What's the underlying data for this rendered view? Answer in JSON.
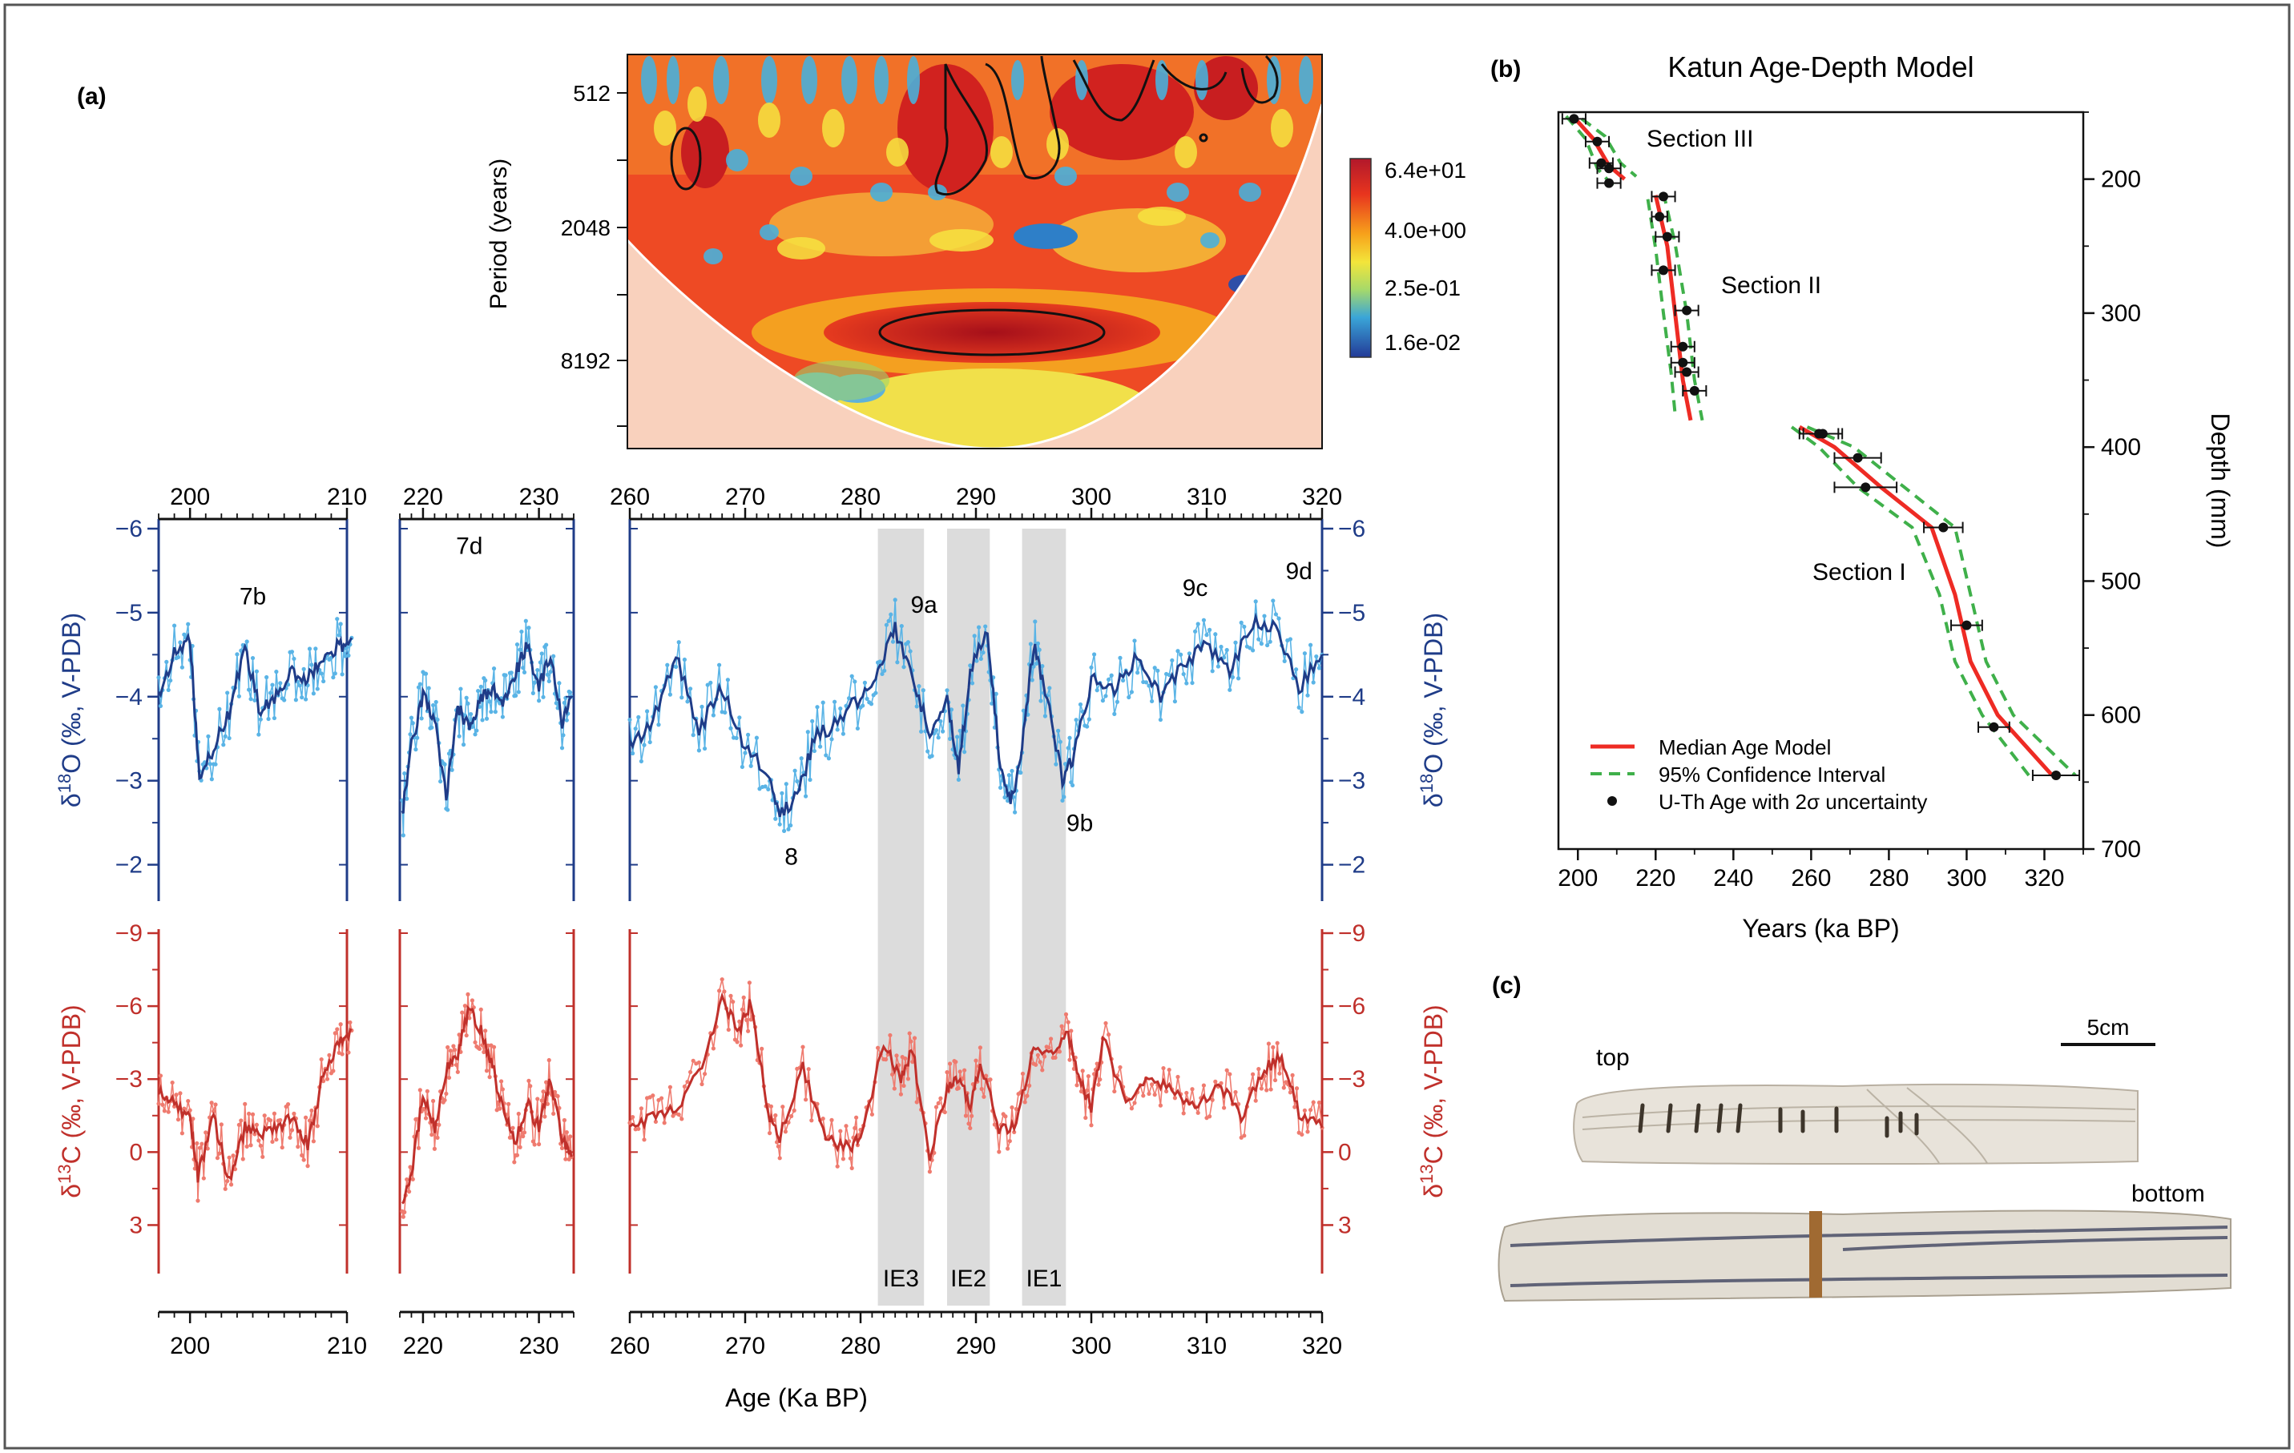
{
  "panel_labels": {
    "a": "(a)",
    "b": "(b)",
    "c": "(c)"
  },
  "colors": {
    "d18o_dark": "#1f3c88",
    "d18o_light": "#5ab4e6",
    "d13c_dark": "#c0302b",
    "d13c_light": "#ef7b6f",
    "median": "#ee2b24",
    "ci": "#3fb04a",
    "ie_band": "#dcdcdc"
  },
  "wavelet": {
    "ylabel": "Period (years)",
    "yticks": [
      "512",
      "2048",
      "8192"
    ],
    "colorbar_labels": [
      "6.4e+01",
      "4.0e+00",
      "2.5e-01",
      "1.6e-02"
    ]
  },
  "chart_data": [
    {
      "type": "line",
      "name": "d18O",
      "ylabel_left": "δ18O (‰, V-PDB)",
      "ylabel_right": "δ18O (‰, V-PDB)",
      "ylim": [
        -6,
        -1.5
      ],
      "yticks": [
        "-6",
        "-5",
        "-4",
        "-3",
        "-2"
      ],
      "segments": [
        {
          "xlim": [
            198,
            210
          ],
          "xticks": [
            "200",
            "210"
          ],
          "points": [
            [
              198,
              -4.0
            ],
            [
              199,
              -4.5
            ],
            [
              200,
              -4.7
            ],
            [
              200.6,
              -3.0
            ],
            [
              201.5,
              -3.4
            ],
            [
              202.5,
              -3.8
            ],
            [
              203.5,
              -4.6
            ],
            [
              204.5,
              -3.8
            ],
            [
              205.5,
              -4.0
            ],
            [
              206.5,
              -4.3
            ],
            [
              207.5,
              -4.2
            ],
            [
              208.5,
              -4.5
            ],
            [
              209.5,
              -4.6
            ],
            [
              210.3,
              -4.7
            ]
          ]
        },
        {
          "xlim": [
            218,
            233
          ],
          "xticks": [
            "220",
            "230"
          ],
          "points": [
            [
              218.2,
              -2.6
            ],
            [
              219,
              -3.4
            ],
            [
              220,
              -4.0
            ],
            [
              221,
              -3.7
            ],
            [
              222,
              -2.8
            ],
            [
              223,
              -3.9
            ],
            [
              224,
              -3.6
            ],
            [
              225,
              -4.0
            ],
            [
              226,
              -4.1
            ],
            [
              227,
              -3.9
            ],
            [
              228,
              -4.3
            ],
            [
              229,
              -4.6
            ],
            [
              230,
              -4.1
            ],
            [
              231,
              -4.5
            ],
            [
              232,
              -3.7
            ],
            [
              232.8,
              -4.0
            ]
          ]
        },
        {
          "xlim": [
            260,
            320
          ],
          "xticks": [
            "260",
            "270",
            "280",
            "290",
            "300",
            "310",
            "320"
          ],
          "points": [
            [
              260,
              -3.4
            ],
            [
              262,
              -3.7
            ],
            [
              264,
              -4.5
            ],
            [
              266,
              -3.6
            ],
            [
              268,
              -4.1
            ],
            [
              270,
              -3.4
            ],
            [
              272,
              -3.1
            ],
            [
              273,
              -2.6
            ],
            [
              274.5,
              -2.8
            ],
            [
              276,
              -3.5
            ],
            [
              278,
              -3.7
            ],
            [
              280,
              -4.0
            ],
            [
              281.5,
              -4.3
            ],
            [
              283,
              -4.8
            ],
            [
              284.5,
              -4.2
            ],
            [
              286,
              -3.6
            ],
            [
              287.5,
              -4.0
            ],
            [
              288.5,
              -3.1
            ],
            [
              289.5,
              -4.3
            ],
            [
              291,
              -4.8
            ],
            [
              292,
              -3.3
            ],
            [
              293,
              -2.7
            ],
            [
              294,
              -3.4
            ],
            [
              295,
              -4.6
            ],
            [
              296,
              -4.1
            ],
            [
              297.5,
              -3.0
            ],
            [
              298.5,
              -3.3
            ],
            [
              300,
              -4.2
            ],
            [
              302,
              -4.1
            ],
            [
              304,
              -4.5
            ],
            [
              306,
              -4.0
            ],
            [
              308,
              -4.4
            ],
            [
              310,
              -4.6
            ],
            [
              312,
              -4.3
            ],
            [
              314,
              -4.9
            ],
            [
              316,
              -4.8
            ],
            [
              318,
              -4.1
            ],
            [
              320,
              -4.5
            ]
          ]
        }
      ],
      "annotations": [
        {
          "text": "7b",
          "x": 204,
          "y": -5.1
        },
        {
          "text": "7d",
          "x": 224,
          "y": -5.7
        },
        {
          "text": "9a",
          "x": 285.5,
          "y": -5.0
        },
        {
          "text": "9c",
          "x": 309,
          "y": -5.2
        },
        {
          "text": "9d",
          "x": 318,
          "y": -5.4
        },
        {
          "text": "8",
          "x": 274,
          "y": -2.0
        },
        {
          "text": "9b",
          "x": 299,
          "y": -2.4
        }
      ]
    },
    {
      "type": "line",
      "name": "d13C",
      "ylabel_left": "δ13C (‰, V-PDB)",
      "ylabel_right": "δ13C (‰, V-PDB)",
      "ylim": [
        -9,
        4.5
      ],
      "yticks": [
        "-9",
        "-6",
        "-3",
        "0",
        "3"
      ],
      "segments": [
        {
          "xlim": [
            198,
            210
          ],
          "xticks": [
            "200",
            "210"
          ],
          "points": [
            [
              198,
              -2.5
            ],
            [
              199,
              -2.0
            ],
            [
              200,
              -1.4
            ],
            [
              200.5,
              1.0
            ],
            [
              201.5,
              -1.5
            ],
            [
              202.5,
              1.3
            ],
            [
              203.5,
              -1.0
            ],
            [
              204.5,
              -0.8
            ],
            [
              205.5,
              -1.0
            ],
            [
              206.5,
              -1.5
            ],
            [
              207.5,
              -0.3
            ],
            [
              208.5,
              -3.2
            ],
            [
              209.5,
              -4.5
            ],
            [
              210.3,
              -5.0
            ]
          ]
        },
        {
          "xlim": [
            218,
            233
          ],
          "xticks": [
            "220",
            "230"
          ],
          "points": [
            [
              218.2,
              2.0
            ],
            [
              219,
              1.0
            ],
            [
              220,
              -2.4
            ],
            [
              221,
              -1.0
            ],
            [
              222,
              -3.4
            ],
            [
              223,
              -4.0
            ],
            [
              224,
              -6.0
            ],
            [
              225,
              -5.0
            ],
            [
              226,
              -3.5
            ],
            [
              227,
              -1.5
            ],
            [
              228,
              -0.5
            ],
            [
              229,
              -2.0
            ],
            [
              230,
              -1.0
            ],
            [
              231,
              -3.0
            ],
            [
              232,
              -0.5
            ],
            [
              232.8,
              0.2
            ]
          ]
        },
        {
          "xlim": [
            260,
            320
          ],
          "xticks": [
            "260",
            "270",
            "280",
            "290",
            "300",
            "310",
            "320"
          ],
          "points": [
            [
              260,
              -1.0
            ],
            [
              262,
              -1.4
            ],
            [
              264,
              -1.7
            ],
            [
              266,
              -3.3
            ],
            [
              268,
              -6.2
            ],
            [
              269.5,
              -5.0
            ],
            [
              270.5,
              -6.2
            ],
            [
              272,
              -1.5
            ],
            [
              273,
              -0.6
            ],
            [
              275,
              -3.5
            ],
            [
              277,
              -0.5
            ],
            [
              279,
              -0.2
            ],
            [
              280,
              -0.5
            ],
            [
              282,
              -4.5
            ],
            [
              283.5,
              -3.0
            ],
            [
              284.5,
              -4.2
            ],
            [
              286,
              0.2
            ],
            [
              287.5,
              -2.5
            ],
            [
              288.5,
              -3.0
            ],
            [
              289.5,
              -2.0
            ],
            [
              290.5,
              -3.6
            ],
            [
              292,
              -1.0
            ],
            [
              293.5,
              -1.0
            ],
            [
              295,
              -4.5
            ],
            [
              296.5,
              -4.0
            ],
            [
              298,
              -4.8
            ],
            [
              299,
              -3.0
            ],
            [
              300,
              -1.8
            ],
            [
              301,
              -4.7
            ],
            [
              303,
              -2.0
            ],
            [
              305,
              -3.2
            ],
            [
              307,
              -2.5
            ],
            [
              309,
              -1.8
            ],
            [
              311,
              -2.8
            ],
            [
              313,
              -1.5
            ],
            [
              315,
              -3.4
            ],
            [
              316.5,
              -4.0
            ],
            [
              318,
              -1.6
            ],
            [
              320,
              -1.0
            ]
          ]
        }
      ],
      "bands": [
        {
          "label": "IE3",
          "x0": 281.5,
          "x1": 285.5
        },
        {
          "label": "IE2",
          "x0": 287.5,
          "x1": 291.2
        },
        {
          "label": "IE1",
          "x0": 294.0,
          "x1": 297.8
        }
      ]
    },
    {
      "type": "scatter",
      "name": "age-depth",
      "title": "Katun Age-Depth Model",
      "xlabel": "Years (ka BP)",
      "ylabel": "Depth (mm)",
      "xlim": [
        195,
        330
      ],
      "ylim": [
        150,
        700
      ],
      "xticks": [
        "200",
        "220",
        "240",
        "260",
        "280",
        "300",
        "320"
      ],
      "yticks": [
        "200",
        "300",
        "400",
        "500",
        "600",
        "700"
      ],
      "points": [
        [
          199,
          155
        ],
        [
          205,
          172
        ],
        [
          206,
          188
        ],
        [
          208,
          192
        ],
        [
          208,
          203
        ],
        [
          222,
          213
        ],
        [
          221,
          228
        ],
        [
          223,
          243
        ],
        [
          222,
          268
        ],
        [
          228,
          298
        ],
        [
          227,
          325
        ],
        [
          227,
          337
        ],
        [
          228,
          344
        ],
        [
          230,
          358
        ],
        [
          262,
          390
        ],
        [
          263,
          390
        ],
        [
          272,
          408
        ],
        [
          274,
          430
        ],
        [
          294,
          460
        ],
        [
          300,
          533
        ],
        [
          307,
          609
        ],
        [
          323,
          645
        ]
      ],
      "xerr": [
        3,
        3,
        3,
        3,
        3,
        3,
        2,
        3,
        3,
        3,
        3,
        3,
        3,
        3,
        5,
        5,
        6,
        8,
        5,
        4,
        4,
        6
      ],
      "median": [
        [
          199,
          154
        ],
        [
          204,
          170
        ],
        [
          208,
          190
        ],
        [
          212,
          200
        ],
        [
          220,
          212
        ],
        [
          223,
          250
        ],
        [
          225,
          300
        ],
        [
          227,
          350
        ],
        [
          229,
          380
        ],
        [
          257,
          385
        ],
        [
          266,
          400
        ],
        [
          278,
          430
        ],
        [
          291,
          460
        ],
        [
          297,
          510
        ],
        [
          301,
          560
        ],
        [
          308,
          600
        ],
        [
          322,
          645
        ]
      ],
      "ci_lower": [
        [
          197,
          153
        ],
        [
          202,
          170
        ],
        [
          205,
          192
        ],
        [
          209,
          205
        ],
        [
          218,
          215
        ],
        [
          220,
          252
        ],
        [
          222,
          300
        ],
        [
          224,
          345
        ],
        [
          225,
          375
        ],
        [
          255,
          385
        ],
        [
          262,
          400
        ],
        [
          272,
          430
        ],
        [
          286,
          460
        ],
        [
          293,
          510
        ],
        [
          297,
          560
        ],
        [
          304,
          600
        ],
        [
          316,
          645
        ]
      ],
      "ci_upper": [
        [
          201,
          155
        ],
        [
          207,
          168
        ],
        [
          211,
          188
        ],
        [
          215,
          198
        ],
        [
          222,
          210
        ],
        [
          225,
          248
        ],
        [
          228,
          300
        ],
        [
          230,
          350
        ],
        [
          232,
          380
        ],
        [
          259,
          385
        ],
        [
          271,
          400
        ],
        [
          284,
          430
        ],
        [
          297,
          460
        ],
        [
          301,
          510
        ],
        [
          305,
          560
        ],
        [
          312,
          600
        ],
        [
          328,
          645
        ]
      ],
      "annotations": [
        "Section III",
        "Section II",
        "Section I"
      ],
      "legend": [
        "Median Age Model",
        "95% Confidence Interval",
        "U-Th Age with 2σ uncertainty"
      ]
    }
  ],
  "shared_xlabel": "Age (Ka BP)",
  "photo": {
    "top": "top",
    "bottom": "bottom",
    "scale": "5cm"
  }
}
